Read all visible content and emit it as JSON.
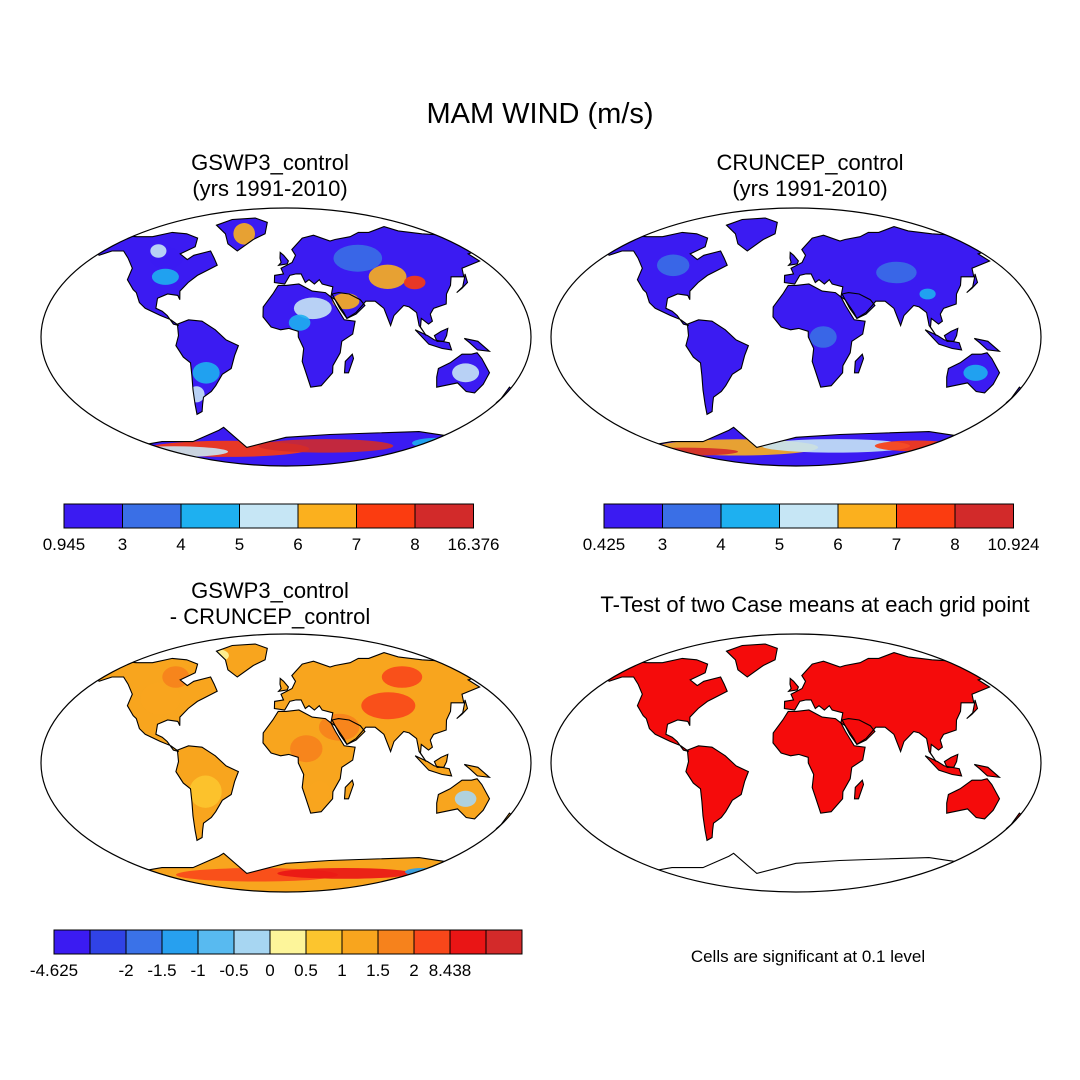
{
  "title": "MAM WIND (m/s)",
  "panels": [
    {
      "id": "gswp3",
      "title_line1": "GSWP3_control",
      "title_line2": "(yrs 1991-2010)"
    },
    {
      "id": "cruncep",
      "title_line1": "CRUNCEP_control",
      "title_line2": "(yrs 1991-2010)"
    },
    {
      "id": "diff",
      "title_line1": "GSWP3_control",
      "title_line2": "- CRUNCEP_control"
    },
    {
      "id": "ttest",
      "title_line1": "T-Test of two Case means at each grid point"
    }
  ],
  "note": "Cells are significant at 0.1 level",
  "colors": {
    "wind": [
      "#3b1bf2",
      "#3a6fe6",
      "#1eb0f0",
      "#c6e6f5",
      "#fbb01e",
      "#fb3c10",
      "#d22a2a"
    ],
    "diff": [
      "#3b1bf2",
      "#3043e6",
      "#3a72e8",
      "#27a0ef",
      "#58baf0",
      "#a7d6f2",
      "#fdf59a",
      "#fcc52e",
      "#f8a51e",
      "#f6821c",
      "#f8471a",
      "#e91515",
      "#d32a2a"
    ],
    "sig": "#f50b0b"
  },
  "colorbars": [
    {
      "id": "gswp3",
      "labels": [
        "0.945",
        "3",
        "4",
        "5",
        "6",
        "7",
        "8",
        "16.376"
      ]
    },
    {
      "id": "cruncep",
      "labels": [
        "0.425",
        "3",
        "4",
        "5",
        "6",
        "7",
        "8",
        "10.924"
      ]
    },
    {
      "id": "diff",
      "labels": [
        "-4.625",
        "-2",
        "-1.5",
        "-1",
        "-0.5",
        "0",
        "0.5",
        "1",
        "1.5",
        "2",
        "8.438"
      ]
    }
  ]
}
